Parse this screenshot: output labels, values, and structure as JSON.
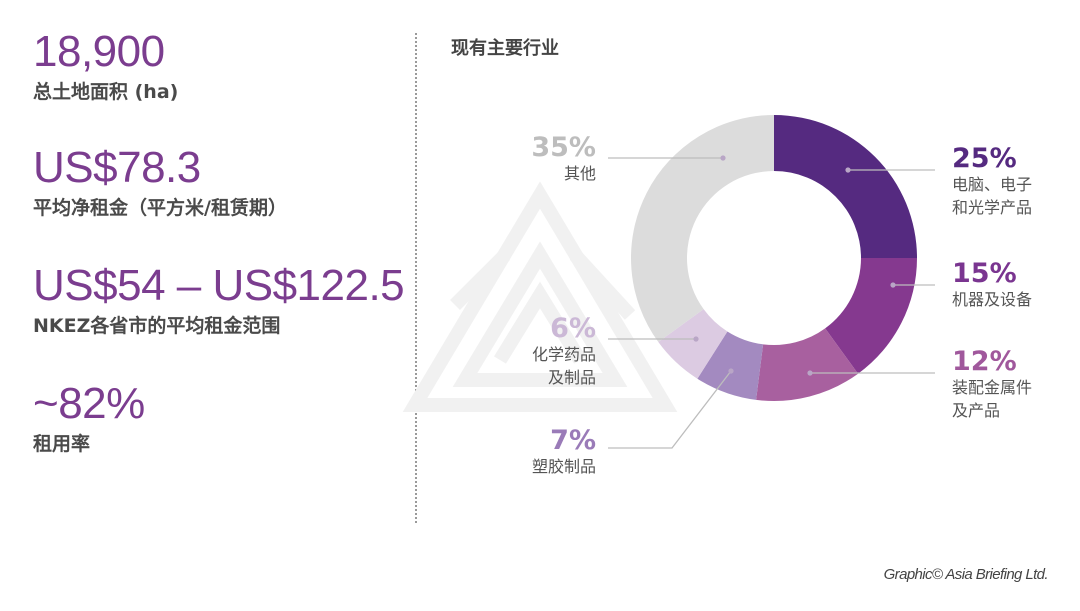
{
  "stats": [
    {
      "value": "18,900",
      "label": "总土地面积 (ha)"
    },
    {
      "value": "US$78.3",
      "label": "平均净租金（平方米/租赁期）"
    },
    {
      "value": "US$54 – US$122.5",
      "label": "NKEZ各省市的平均租金范围"
    },
    {
      "value": "~82%",
      "label": "租用率"
    }
  ],
  "chart": {
    "title": "现有主要行业",
    "segments": [
      {
        "pct_label": "25%",
        "line1": "电脑、电子",
        "line2": "和光学产品",
        "color": "#552a80",
        "pct_color": "#552a80"
      },
      {
        "pct_label": "15%",
        "line1": "机器及设备",
        "line2": "",
        "color": "#85398f",
        "pct_color": "#7a3590"
      },
      {
        "pct_label": "12%",
        "line1": "装配金属件",
        "line2": "及产品",
        "color": "#a8609f",
        "pct_color": "#a0589c"
      },
      {
        "pct_label": "7%",
        "line1": "塑胶制品",
        "line2": "",
        "color": "#a38ac0",
        "pct_color": "#9a7bb8"
      },
      {
        "pct_label": "6%",
        "line1": "化学药品",
        "line2": "及制品",
        "color": "#dccbe2",
        "pct_color": "#cbb8d6"
      },
      {
        "pct_label": "35%",
        "line1": "其他",
        "line2": "",
        "color": "#dcdcdc",
        "pct_color": "#bdbdbd"
      }
    ]
  },
  "credit": "Graphic© Asia Briefing Ltd.",
  "chart_data": {
    "type": "pie",
    "title": "现有主要行业",
    "categories": [
      "电脑、电子和光学产品",
      "机器及设备",
      "装配金属件及产品",
      "塑胶制品",
      "化学药品及制品",
      "其他"
    ],
    "values": [
      25,
      15,
      12,
      7,
      6,
      35
    ],
    "unit": "%",
    "donut": true,
    "legend_position": "callouts"
  }
}
